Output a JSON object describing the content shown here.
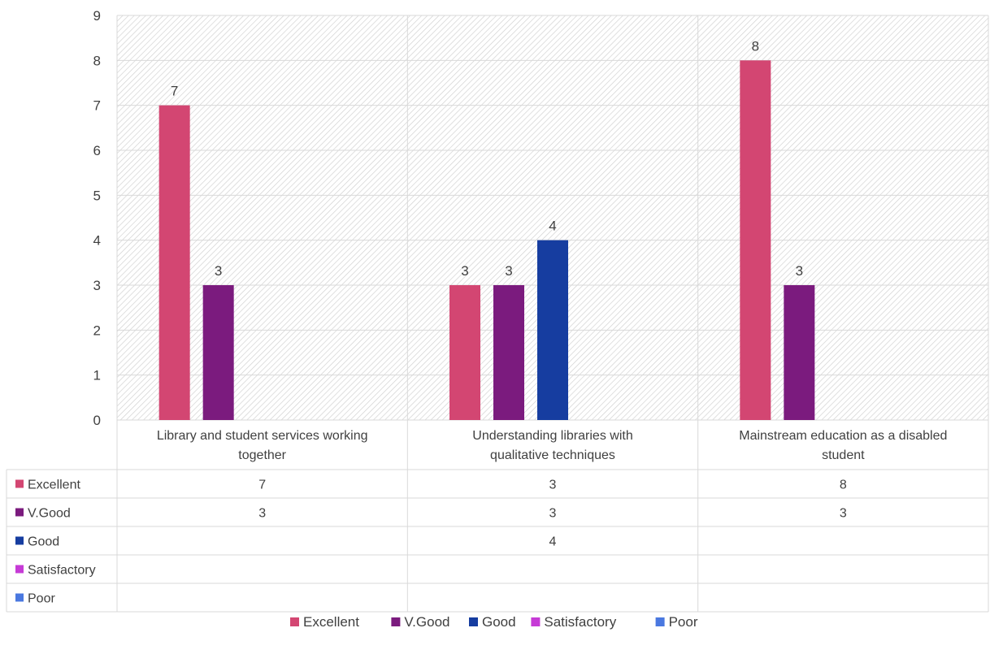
{
  "chart_data": {
    "type": "bar",
    "title": "",
    "xlabel": "",
    "ylabel": "",
    "ylim": [
      0,
      9
    ],
    "yticks": [
      0,
      1,
      2,
      3,
      4,
      5,
      6,
      7,
      8,
      9
    ],
    "grid": true,
    "legend_position": "bottom",
    "data_table": true,
    "categories": [
      "Library and student services working together",
      "Understanding libraries with qualitative techniques",
      "Mainstream education as a disabled student"
    ],
    "series": [
      {
        "name": "Excellent",
        "color": "#D34672",
        "values": [
          7,
          3,
          8
        ]
      },
      {
        "name": "V.Good",
        "color": "#7B1B7E",
        "values": [
          3,
          3,
          3
        ]
      },
      {
        "name": "Good",
        "color": "#163DA0",
        "values": [
          null,
          4,
          null
        ]
      },
      {
        "name": "Satisfactory",
        "color": "#C63BD6",
        "values": [
          null,
          null,
          null
        ]
      },
      {
        "name": "Poor",
        "color": "#4A78E0",
        "values": [
          null,
          null,
          null
        ]
      }
    ]
  }
}
